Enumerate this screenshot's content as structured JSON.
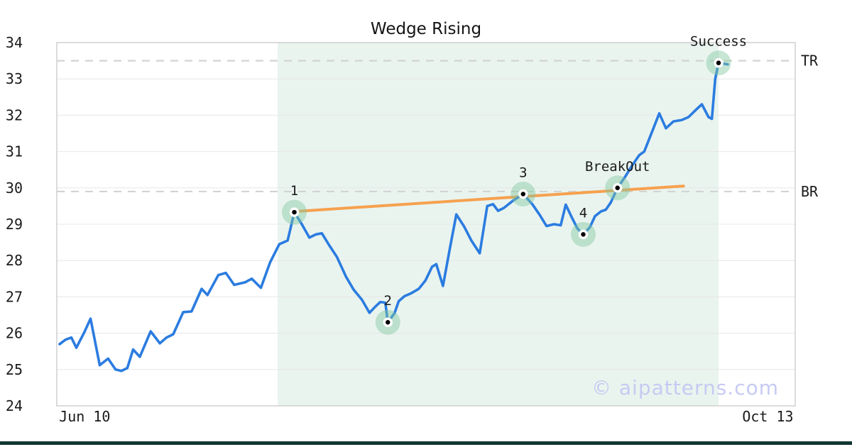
{
  "title": "Wedge Rising",
  "watermark": "© aipatterns.com",
  "colors": {
    "line": "#2b7ce0",
    "trendline": "#f6a14f",
    "marker_halo": "rgba(130,200,160,0.45)",
    "marker_dot": "#000000",
    "pattern_zone": "#e9f4ef",
    "grid": "#e7e7e7",
    "border": "#cccccc",
    "level_dash": "#d3d3d3",
    "text": "#1a1a1a",
    "watermark": "#c7caf2",
    "bottom_bar": "#113632"
  },
  "chart_data": {
    "type": "line",
    "title": "Wedge Rising",
    "xlabel": "",
    "ylabel": "",
    "ylim": [
      24,
      34
    ],
    "grid": "horizontal",
    "legend": "none",
    "y_ticks": [
      24,
      25,
      26,
      27,
      28,
      29,
      30,
      31,
      32,
      33,
      34
    ],
    "x_ticks": [
      {
        "label": "Jun 10",
        "day": 3.0
      },
      {
        "label": "Oct 13",
        "day": 84.8
      }
    ],
    "levels": [
      {
        "label": "TR",
        "value": 33.5
      },
      {
        "label": "BR",
        "value": 29.9
      }
    ],
    "pattern_zone": {
      "start_day": 26.1,
      "end_day": 78.9
    },
    "trendline": {
      "start": [
        28.1,
        29.35
      ],
      "end": [
        74.7,
        30.05
      ]
    },
    "annotations": [
      {
        "label": "1",
        "day": 28.1,
        "value": 29.33
      },
      {
        "label": "2",
        "day": 39.3,
        "value": 26.3
      },
      {
        "label": "3",
        "day": 55.5,
        "value": 29.83
      },
      {
        "label": "4",
        "day": 62.7,
        "value": 28.72
      },
      {
        "label": "BreakOut",
        "day": 66.8,
        "value": 30.0
      },
      {
        "label": "Success",
        "day": 78.9,
        "value": 33.44
      }
    ],
    "series": [
      {
        "name": "price",
        "points": [
          [
            0,
            25.7
          ],
          [
            0.7,
            25.82
          ],
          [
            1.4,
            25.88
          ],
          [
            2.0,
            25.6
          ],
          [
            2.9,
            26.0
          ],
          [
            3.7,
            26.4
          ],
          [
            4.8,
            25.12
          ],
          [
            5.8,
            25.3
          ],
          [
            6.7,
            25.0
          ],
          [
            7.4,
            24.96
          ],
          [
            8.1,
            25.04
          ],
          [
            8.8,
            25.55
          ],
          [
            9.6,
            25.35
          ],
          [
            10.9,
            26.05
          ],
          [
            12.0,
            25.72
          ],
          [
            12.8,
            25.88
          ],
          [
            13.6,
            25.97
          ],
          [
            14.8,
            26.58
          ],
          [
            15.8,
            26.6
          ],
          [
            17.0,
            27.22
          ],
          [
            17.7,
            27.05
          ],
          [
            19.0,
            27.6
          ],
          [
            19.9,
            27.66
          ],
          [
            20.9,
            27.33
          ],
          [
            22.2,
            27.4
          ],
          [
            23.0,
            27.5
          ],
          [
            24.1,
            27.25
          ],
          [
            25.2,
            27.95
          ],
          [
            26.3,
            28.45
          ],
          [
            27.3,
            28.55
          ],
          [
            28.1,
            29.33
          ],
          [
            29.0,
            29.0
          ],
          [
            29.9,
            28.63
          ],
          [
            30.7,
            28.72
          ],
          [
            31.4,
            28.75
          ],
          [
            32.2,
            28.45
          ],
          [
            33.2,
            28.1
          ],
          [
            34.3,
            27.55
          ],
          [
            35.2,
            27.2
          ],
          [
            36.2,
            26.92
          ],
          [
            37.1,
            26.56
          ],
          [
            37.8,
            26.73
          ],
          [
            38.4,
            26.86
          ],
          [
            39.0,
            26.84
          ],
          [
            39.3,
            26.3
          ],
          [
            40.1,
            26.55
          ],
          [
            40.6,
            26.88
          ],
          [
            41.3,
            27.02
          ],
          [
            42.1,
            27.1
          ],
          [
            43.0,
            27.22
          ],
          [
            43.8,
            27.45
          ],
          [
            44.6,
            27.83
          ],
          [
            45.1,
            27.9
          ],
          [
            45.9,
            27.3
          ],
          [
            46.7,
            28.3
          ],
          [
            47.5,
            29.27
          ],
          [
            48.4,
            28.95
          ],
          [
            49.3,
            28.55
          ],
          [
            50.3,
            28.2
          ],
          [
            51.2,
            29.5
          ],
          [
            51.9,
            29.55
          ],
          [
            52.5,
            29.37
          ],
          [
            53.2,
            29.45
          ],
          [
            54.3,
            29.65
          ],
          [
            55.5,
            29.83
          ],
          [
            56.6,
            29.55
          ],
          [
            57.5,
            29.25
          ],
          [
            58.3,
            28.95
          ],
          [
            59.2,
            29.0
          ],
          [
            60.0,
            28.97
          ],
          [
            60.6,
            29.54
          ],
          [
            61.3,
            29.2
          ],
          [
            62.0,
            28.88
          ],
          [
            62.7,
            28.72
          ],
          [
            63.5,
            28.92
          ],
          [
            64.1,
            29.22
          ],
          [
            64.8,
            29.35
          ],
          [
            65.4,
            29.4
          ],
          [
            66.0,
            29.6
          ],
          [
            66.8,
            30.0
          ],
          [
            67.7,
            30.3
          ],
          [
            68.5,
            30.6
          ],
          [
            69.4,
            30.9
          ],
          [
            70.0,
            31.0
          ],
          [
            71.1,
            31.64
          ],
          [
            71.8,
            32.05
          ],
          [
            72.6,
            31.64
          ],
          [
            73.5,
            31.83
          ],
          [
            74.5,
            31.87
          ],
          [
            75.3,
            31.95
          ],
          [
            76.2,
            32.15
          ],
          [
            76.9,
            32.3
          ],
          [
            77.7,
            31.95
          ],
          [
            78.1,
            31.9
          ],
          [
            78.5,
            33.0
          ],
          [
            78.9,
            33.44
          ],
          [
            79.5,
            33.42
          ],
          [
            80.0,
            33.4
          ]
        ]
      }
    ]
  }
}
